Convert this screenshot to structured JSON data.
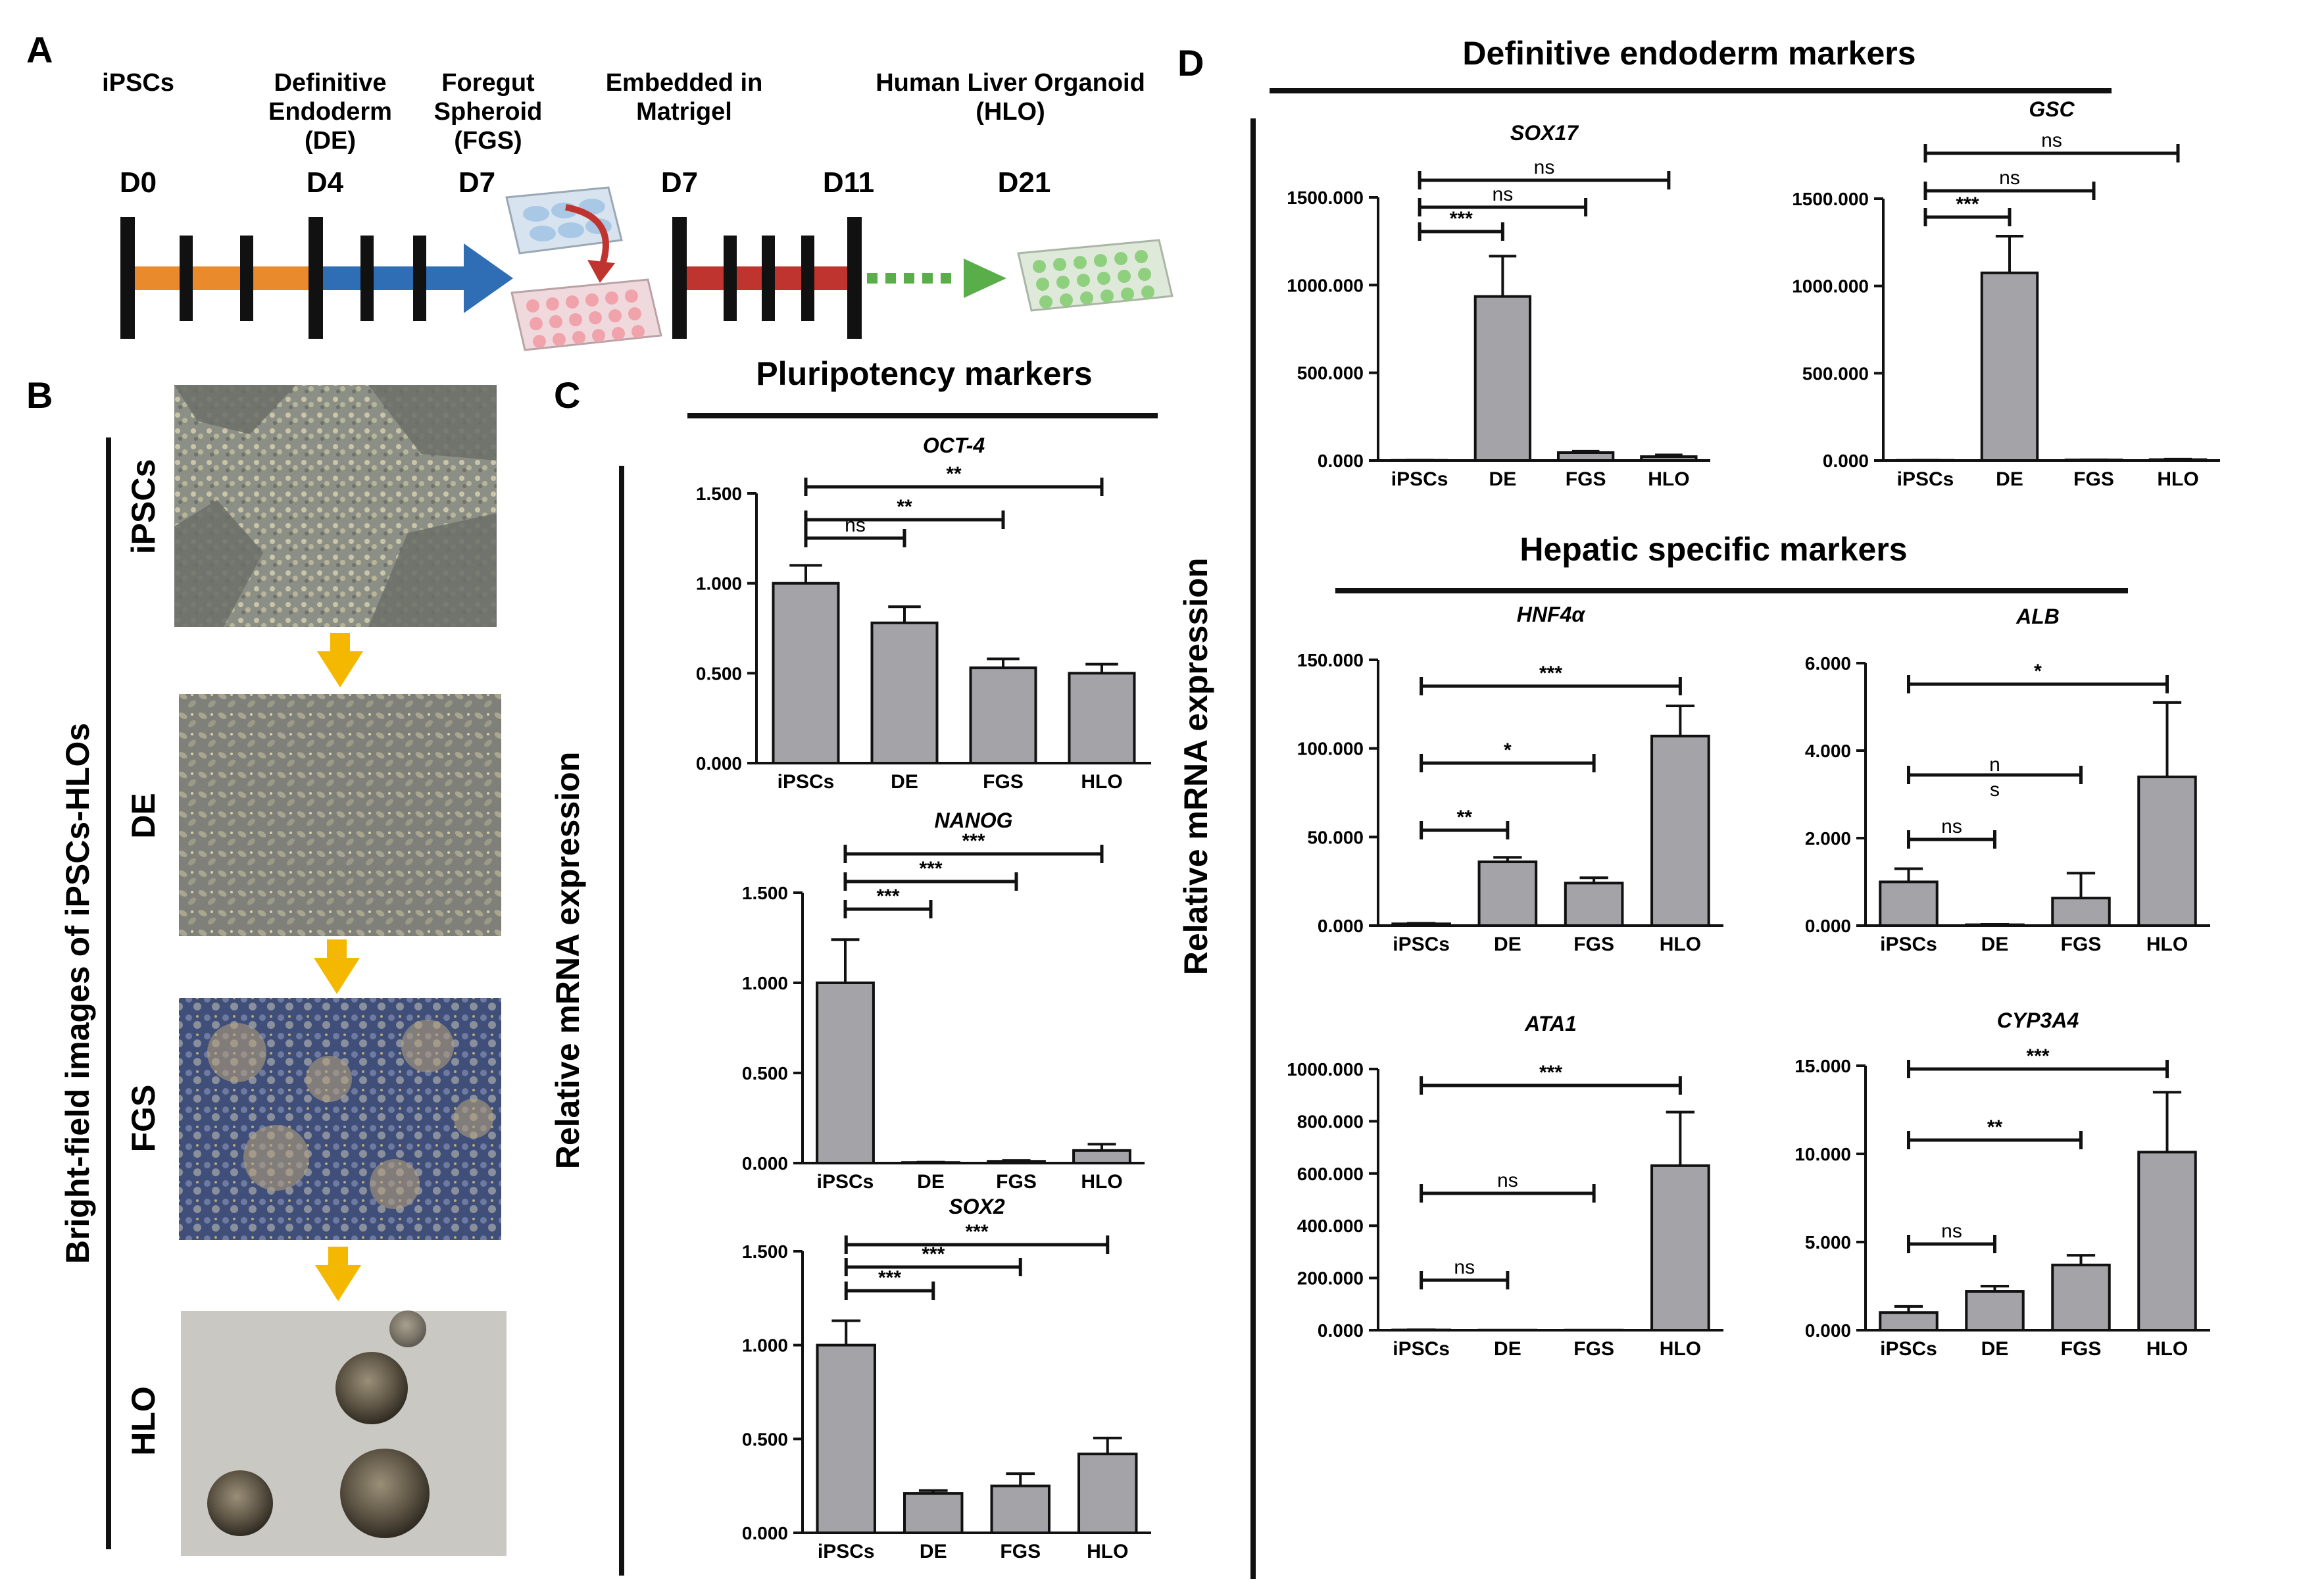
{
  "panels": {
    "a": "A",
    "b": "B",
    "c": "C",
    "d": "D"
  },
  "timeline": {
    "stages": [
      {
        "label": "iPSCs"
      },
      {
        "label": "Definitive\nEndoderm\n(DE)"
      },
      {
        "label": "Foregut\nSpheroid\n(FGS)"
      },
      {
        "label": "Embedded in\nMatrigel"
      },
      {
        "label": "Human Liver Organoid\n(HLO)"
      }
    ],
    "days": [
      "D0",
      "D4",
      "D7",
      "D7",
      "D11",
      "D21"
    ],
    "colors": {
      "orange": "#e98a2c",
      "blue": "#2f6db5",
      "red": "#c0342f",
      "green": "#5aae4a",
      "bar": "#111111"
    }
  },
  "images": {
    "title": "Bright-field images of iPSCs-HLOs",
    "labels": [
      "iPSCs",
      "DE",
      "FGS",
      "HLO"
    ],
    "arrow_color": "#f5b800"
  },
  "sections": {
    "pluripotency": "Pluripotency markers",
    "endoderm": "Definitive endoderm markers",
    "hepatic": "Hepatic specific markers"
  },
  "ylabel": "Relative mRNA expression",
  "chart_data": [
    {
      "type": "bar",
      "title": "OCT-4",
      "italic": true,
      "categories": [
        "iPSCs",
        "DE",
        "FGS",
        "HLO"
      ],
      "values": [
        1.0,
        0.78,
        0.53,
        0.5
      ],
      "errors": [
        0.1,
        0.09,
        0.05,
        0.05
      ],
      "ylim": [
        0,
        1.5
      ],
      "yticks": [
        0,
        0.5,
        1.0,
        1.5
      ],
      "yticklabels": [
        "0.000",
        "0.500",
        "1.000",
        "1.500"
      ],
      "significance": [
        {
          "from": 0,
          "to": 1,
          "label": "ns"
        },
        {
          "from": 0,
          "to": 2,
          "label": "**"
        },
        {
          "from": 0,
          "to": 3,
          "label": "**"
        }
      ]
    },
    {
      "type": "bar",
      "title": "NANOG",
      "italic": true,
      "categories": [
        "iPSCs",
        "DE",
        "FGS",
        "HLO"
      ],
      "values": [
        1.0,
        0.003,
        0.01,
        0.07
      ],
      "errors": [
        0.24,
        0.002,
        0.004,
        0.035
      ],
      "ylim": [
        0,
        1.5
      ],
      "yticks": [
        0,
        0.5,
        1.0,
        1.5
      ],
      "yticklabels": [
        "0.000",
        "0.500",
        "1.000",
        "1.500"
      ],
      "significance": [
        {
          "from": 0,
          "to": 1,
          "label": "***"
        },
        {
          "from": 0,
          "to": 2,
          "label": "***"
        },
        {
          "from": 0,
          "to": 3,
          "label": "***"
        }
      ]
    },
    {
      "type": "bar",
      "title": "SOX2",
      "italic": true,
      "categories": [
        "iPSCs",
        "DE",
        "FGS",
        "HLO"
      ],
      "values": [
        1.0,
        0.21,
        0.25,
        0.42
      ],
      "errors": [
        0.13,
        0.015,
        0.065,
        0.085
      ],
      "ylim": [
        0,
        1.5
      ],
      "yticks": [
        0,
        0.5,
        1.0,
        1.5
      ],
      "yticklabels": [
        "0.000",
        "0.500",
        "1.000",
        "1.500"
      ],
      "significance": [
        {
          "from": 0,
          "to": 1,
          "label": "***"
        },
        {
          "from": 0,
          "to": 2,
          "label": "***"
        },
        {
          "from": 0,
          "to": 3,
          "label": "***"
        }
      ]
    },
    {
      "type": "bar",
      "title": "SOX17",
      "italic": true,
      "categories": [
        "iPSCs",
        "DE",
        "FGS",
        "HLO"
      ],
      "values": [
        1,
        935,
        45,
        22
      ],
      "errors": [
        0.5,
        230,
        8,
        10
      ],
      "ylim": [
        0,
        1500
      ],
      "yticks": [
        0,
        500,
        1000,
        1500
      ],
      "yticklabels": [
        "0.000",
        "500.000",
        "1000.000",
        "1500.000"
      ],
      "significance": [
        {
          "from": 0,
          "to": 1,
          "label": "***"
        },
        {
          "from": 0,
          "to": 2,
          "label": "ns"
        },
        {
          "from": 0,
          "to": 3,
          "label": "ns"
        }
      ]
    },
    {
      "type": "bar",
      "title": "GSC",
      "italic": true,
      "categories": [
        "iPSCs",
        "DE",
        "FGS",
        "HLO"
      ],
      "values": [
        1,
        1075,
        3,
        5
      ],
      "errors": [
        0.5,
        210,
        1,
        3
      ],
      "ylim": [
        0,
        1500
      ],
      "yticks": [
        0,
        500,
        1000,
        1500
      ],
      "yticklabels": [
        "0.000",
        "500.000",
        "1000.000",
        "1500.000"
      ],
      "significance": [
        {
          "from": 0,
          "to": 1,
          "label": "***"
        },
        {
          "from": 0,
          "to": 2,
          "label": "ns"
        },
        {
          "from": 0,
          "to": 3,
          "label": "ns"
        }
      ]
    },
    {
      "type": "bar",
      "title": "HNF4α",
      "italic": true,
      "categories": [
        "iPSCs",
        "DE",
        "FGS",
        "HLO"
      ],
      "values": [
        1,
        36,
        24,
        107
      ],
      "errors": [
        0.3,
        2.5,
        3,
        17
      ],
      "ylim": [
        0,
        150
      ],
      "yticks": [
        0,
        50,
        100,
        150
      ],
      "yticklabels": [
        "0.000",
        "50.000",
        "100.000",
        "150.000"
      ],
      "significance": [
        {
          "from": 0,
          "to": 1,
          "label": "**"
        },
        {
          "from": 0,
          "to": 2,
          "label": "*"
        },
        {
          "from": 0,
          "to": 3,
          "label": "***"
        }
      ]
    },
    {
      "type": "bar",
      "title": "ALB",
      "italic": true,
      "categories": [
        "iPSCs",
        "DE",
        "FGS",
        "HLO"
      ],
      "values": [
        1.0,
        0.02,
        0.63,
        3.4
      ],
      "errors": [
        0.3,
        0.01,
        0.57,
        1.7
      ],
      "ylim": [
        0,
        6
      ],
      "yticks": [
        0,
        2,
        4,
        6
      ],
      "yticklabels": [
        "0.000",
        "2.000",
        "4.000",
        "6.000"
      ],
      "significance": [
        {
          "from": 0,
          "to": 1,
          "label": "ns"
        },
        {
          "from": 0,
          "to": 2,
          "label": "n\ns"
        },
        {
          "from": 0,
          "to": 3,
          "label": "*"
        }
      ]
    },
    {
      "type": "bar",
      "title": "ATA1",
      "italic": false,
      "categories": [
        "iPSCs",
        "DE",
        "FGS",
        "HLO"
      ],
      "values": [
        1,
        0.5,
        0.5,
        630
      ],
      "errors": [
        0.5,
        0,
        0,
        205
      ],
      "ylim": [
        0,
        1000
      ],
      "yticks": [
        0,
        200,
        400,
        600,
        800,
        1000
      ],
      "yticklabels": [
        "0.000",
        "200.000",
        "400.000",
        "600.000",
        "800.000",
        "1000.000"
      ],
      "significance": [
        {
          "from": 0,
          "to": 1,
          "label": "ns"
        },
        {
          "from": 0,
          "to": 2,
          "label": "ns"
        },
        {
          "from": 0,
          "to": 3,
          "label": "***"
        }
      ]
    },
    {
      "type": "bar",
      "title": "CYP3A4",
      "italic": false,
      "categories": [
        "iPSCs",
        "DE",
        "FGS",
        "HLO"
      ],
      "values": [
        1.0,
        2.2,
        3.7,
        10.1
      ],
      "errors": [
        0.35,
        0.3,
        0.55,
        3.4
      ],
      "ylim": [
        0,
        15
      ],
      "yticks": [
        0,
        5,
        10,
        15
      ],
      "yticklabels": [
        "0.000",
        "5.000",
        "10.000",
        "15.000"
      ],
      "significance": [
        {
          "from": 0,
          "to": 1,
          "label": "ns"
        },
        {
          "from": 0,
          "to": 2,
          "label": "**"
        },
        {
          "from": 0,
          "to": 3,
          "label": "***"
        }
      ]
    }
  ],
  "colors": {
    "bar_fill": "#a3a3a8",
    "bar_stroke": "#111111"
  }
}
